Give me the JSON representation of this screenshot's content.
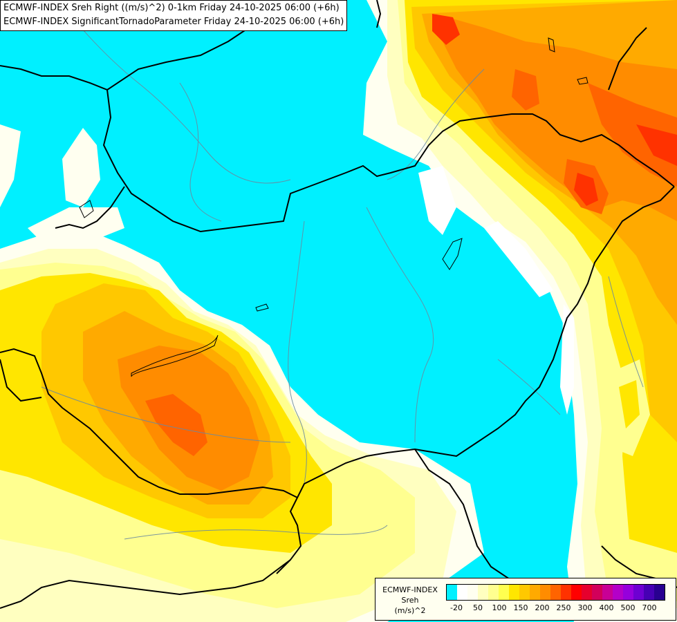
{
  "title": {
    "line1": "ECMWF-INDEX Sreh Right ((m/s)^2) 0-1km Friday 24-10-2025 06:00 (+6h)",
    "line2": "ECMWF-INDEX SignificantTornadoParameter Friday 24-10-2025 06:00 (+6h)"
  },
  "legend": {
    "line1": "ECMWF-INDEX",
    "line2": "Sreh",
    "line3": "(m/s)^2",
    "ticks": [
      "-20",
      "50",
      "100",
      "150",
      "200",
      "250",
      "300",
      "400",
      "500",
      "700"
    ],
    "colors": [
      "#00f0ff",
      "#ffffff",
      "#fffff0",
      "#ffffc0",
      "#ffff90",
      "#ffff50",
      "#ffe600",
      "#ffc800",
      "#ffaa00",
      "#ff8c00",
      "#ff6400",
      "#ff3200",
      "#ff0000",
      "#e6002d",
      "#d2005a",
      "#c80096",
      "#b400c8",
      "#9600dc",
      "#6e00d2",
      "#4600b4",
      "#280090"
    ]
  }
}
